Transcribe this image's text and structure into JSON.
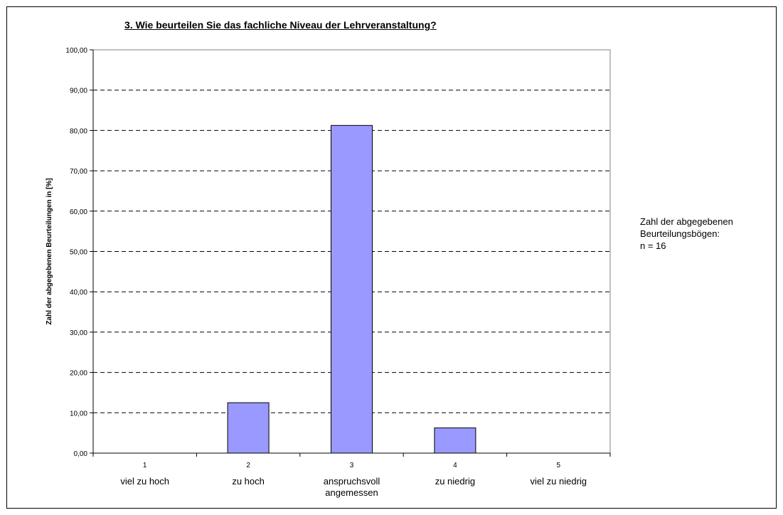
{
  "chart_data": {
    "type": "bar",
    "title": "3. Wie beurteilen Sie das fachliche Niveau der Lehrveranstaltung?",
    "ylabel": "Zahl der abgegebenen Beurteilungen in [%]",
    "xlabel": "",
    "ylim": [
      0,
      100
    ],
    "yticks": [
      "0,00",
      "10,00",
      "20,00",
      "30,00",
      "40,00",
      "50,00",
      "60,00",
      "70,00",
      "80,00",
      "90,00",
      "100,00"
    ],
    "categories": [
      "1",
      "2",
      "3",
      "4",
      "5"
    ],
    "category_labels": [
      [
        "viel zu hoch"
      ],
      [
        "zu hoch"
      ],
      [
        "anspruchsvoll",
        "angemessen"
      ],
      [
        "zu niedrig"
      ],
      [
        "viel zu niedrig"
      ]
    ],
    "values": [
      0,
      12.5,
      81.25,
      6.25,
      0
    ],
    "bar_color": "#9999ff",
    "grid": true,
    "grid_style": "dashed"
  },
  "note": {
    "line1": "Zahl der abgegebenen",
    "line2": "Beurteilungsbögen:",
    "line3": "n = 16"
  }
}
